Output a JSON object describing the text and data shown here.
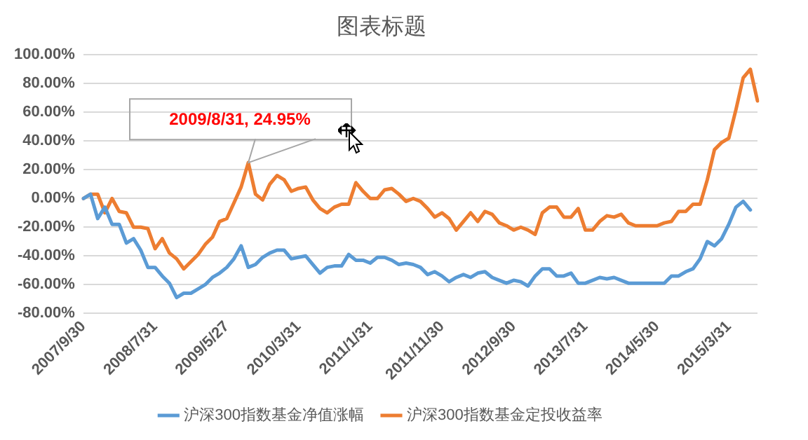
{
  "chart_data": {
    "type": "line",
    "title": "图表标题",
    "categories": [
      "2007/9/30",
      null,
      null,
      null,
      null,
      null,
      null,
      null,
      null,
      null,
      "2008/7/31",
      null,
      null,
      null,
      null,
      null,
      null,
      null,
      null,
      null,
      "2009/5/27",
      null,
      null,
      null,
      null,
      null,
      null,
      null,
      null,
      null,
      "2010/3/31",
      null,
      null,
      null,
      null,
      null,
      null,
      null,
      null,
      null,
      "2011/1/31",
      null,
      null,
      null,
      null,
      null,
      null,
      null,
      null,
      null,
      "2011/11/30",
      null,
      null,
      null,
      null,
      null,
      null,
      null,
      null,
      null,
      "2012/9/30",
      null,
      null,
      null,
      null,
      null,
      null,
      null,
      null,
      null,
      "2013/7/31",
      null,
      null,
      null,
      null,
      null,
      null,
      null,
      null,
      null,
      "2014/5/30",
      null,
      null,
      null,
      null,
      null,
      null,
      null,
      null,
      null,
      "2015/3/31",
      null,
      null,
      null,
      null
    ],
    "series": [
      {
        "name": "沪深300指数基金净值涨幅",
        "color": "#5b9bd5",
        "values": [
          0,
          3,
          -14,
          -6,
          -18,
          -18,
          -31,
          -28,
          -36,
          -48,
          -48,
          -54,
          -59,
          -69,
          -66,
          -66,
          -63,
          -60,
          -55,
          -52,
          -48,
          -42,
          -33,
          -48,
          -46,
          -41,
          -38,
          -36,
          -36,
          -42,
          -41,
          -40,
          -46,
          -52,
          -48,
          -47,
          -47,
          -39,
          -43,
          -43,
          -45,
          -41,
          -41,
          -43,
          -46,
          -45,
          -46,
          -48,
          -53,
          -51,
          -54,
          -58,
          -55,
          -53,
          -55,
          -52,
          -51,
          -55,
          -57,
          -59,
          -57,
          -58,
          -61,
          -54,
          -49,
          -49,
          -54,
          -54,
          -52,
          -59,
          -59,
          -57,
          -55,
          -56,
          -55,
          -57,
          -59,
          -59,
          -59,
          -59,
          -59,
          -59,
          -54,
          -54,
          -51,
          -49,
          -42,
          -30,
          -33,
          -28,
          -18,
          -6,
          -2,
          -8,
          null
        ]
      },
      {
        "name": "沪深300指数基金定投收益率",
        "color": "#ed7d31",
        "values": [
          0,
          3,
          3,
          -10,
          0,
          -9,
          -10,
          -20,
          -20,
          -21,
          -35,
          -28,
          -38,
          -42,
          -49,
          -44,
          -39,
          -32,
          -27,
          -16,
          -14,
          -3,
          8,
          24.95,
          3,
          -1,
          10,
          16,
          13,
          5,
          7,
          8,
          -1,
          -7,
          -10,
          -6,
          -4,
          -4,
          11,
          5,
          0,
          0,
          6,
          7,
          3,
          -2,
          0,
          -2,
          -7,
          -13,
          -10,
          -14,
          -22,
          -16,
          -10,
          -16,
          -9,
          -11,
          -17,
          -19,
          -22,
          -20,
          -22,
          -25,
          -10,
          -6,
          -6,
          -13,
          -13,
          -7,
          -22,
          -22,
          -16,
          -12,
          -13,
          -11,
          -17,
          -19,
          -19,
          -19,
          -19,
          -17,
          -16,
          -9,
          -9,
          -4,
          -4,
          13,
          34,
          39,
          42,
          62,
          84,
          90,
          68
        ]
      }
    ],
    "ylim": [
      -80,
      100
    ],
    "yticks": [
      {
        "value": -80,
        "label": "-80.00%"
      },
      {
        "value": -60,
        "label": "-60.00%"
      },
      {
        "value": -40,
        "label": "-40.00%"
      },
      {
        "value": -20,
        "label": "-20.00%"
      },
      {
        "value": 0,
        "label": "0.00%"
      },
      {
        "value": 20,
        "label": "20.00%"
      },
      {
        "value": 40,
        "label": "40.00%"
      },
      {
        "value": 60,
        "label": "60.00%"
      },
      {
        "value": 80,
        "label": "80.00%"
      },
      {
        "value": 100,
        "label": "100.00%"
      }
    ],
    "grid": "y",
    "legend": "bottom",
    "marker": "none",
    "line_style": "solid",
    "annotations": [
      {
        "text": "2009/8/31, 24.95%",
        "y": 24.95
      }
    ]
  }
}
